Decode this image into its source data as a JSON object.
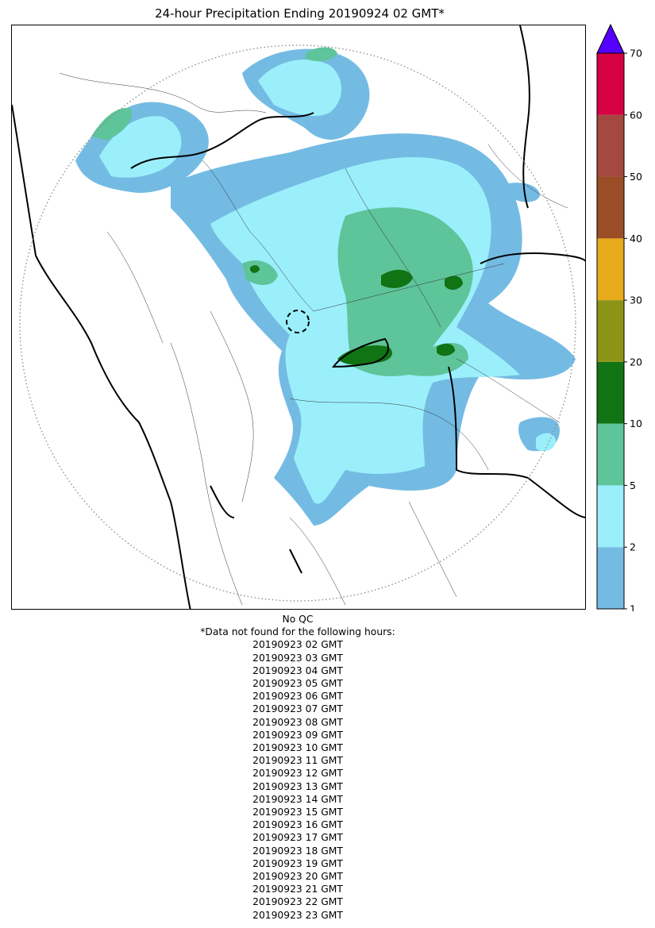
{
  "title": "24-hour Precipitation Ending 20190924 02 GMT*",
  "map": {
    "radar_range_ring": "dotted-circle",
    "radar_site_marker": "dashed-circle",
    "border_color": "#000000"
  },
  "colorbar": {
    "levels": [
      1,
      2,
      5,
      10,
      20,
      30,
      40,
      50,
      60,
      70
    ],
    "tick_labels": [
      "1",
      "2",
      "5",
      "10",
      "20",
      "30",
      "40",
      "50",
      "60",
      "70"
    ],
    "colors": [
      "#74bbe3",
      "#9aeffb",
      "#5ec499",
      "#107314",
      "#8c9417",
      "#e7ab1b",
      "#9a4d27",
      "#a3493f",
      "#d60143"
    ],
    "extend_max_color": "#5500ff"
  },
  "qc_note": "No QC",
  "missing_note": "*Data not found for the following hours:",
  "missing_hours": [
    "20190923 02 GMT",
    "20190923 03 GMT",
    "20190923 04 GMT",
    "20190923 05 GMT",
    "20190923 06 GMT",
    "20190923 07 GMT",
    "20190923 08 GMT",
    "20190923 09 GMT",
    "20190923 10 GMT",
    "20190923 11 GMT",
    "20190923 12 GMT",
    "20190923 13 GMT",
    "20190923 14 GMT",
    "20190923 15 GMT",
    "20190923 16 GMT",
    "20190923 17 GMT",
    "20190923 18 GMT",
    "20190923 19 GMT",
    "20190923 20 GMT",
    "20190923 21 GMT",
    "20190923 22 GMT",
    "20190923 23 GMT"
  ]
}
